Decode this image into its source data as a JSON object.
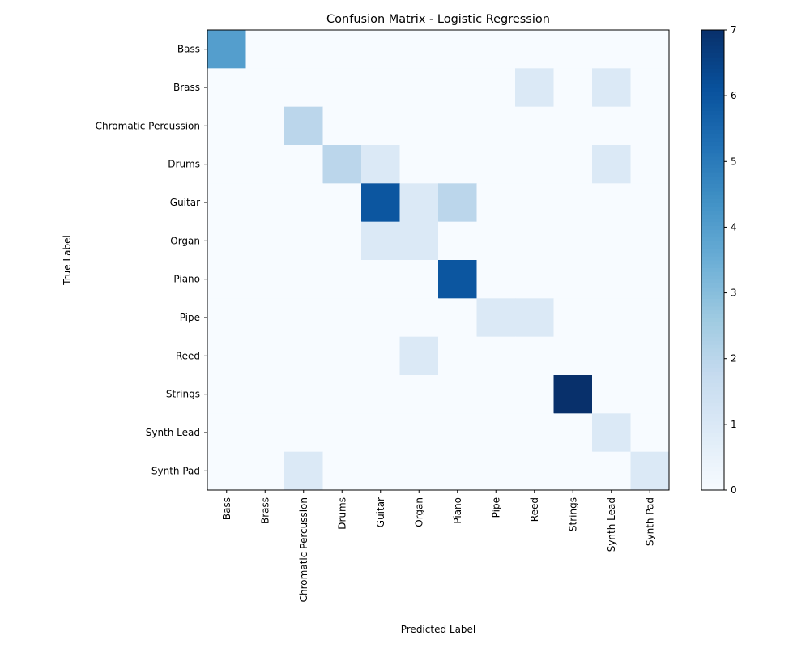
{
  "chart_data": {
    "type": "heatmap",
    "title": "Confusion Matrix - Logistic Regression",
    "xlabel": "Predicted Label",
    "ylabel": "True Label",
    "x_categories": [
      "Bass",
      "Brass",
      "Chromatic Percussion",
      "Drums",
      "Guitar",
      "Organ",
      "Piano",
      "Pipe",
      "Reed",
      "Strings",
      "Synth Lead",
      "Synth Pad"
    ],
    "y_categories": [
      "Bass",
      "Brass",
      "Chromatic Percussion",
      "Drums",
      "Guitar",
      "Organ",
      "Piano",
      "Pipe",
      "Reed",
      "Strings",
      "Synth Lead",
      "Synth Pad"
    ],
    "values": [
      [
        4,
        0,
        0,
        0,
        0,
        0,
        0,
        0,
        0,
        0,
        0,
        0
      ],
      [
        0,
        0,
        0,
        0,
        0,
        0,
        0,
        0,
        1,
        0,
        1,
        0
      ],
      [
        0,
        0,
        2,
        0,
        0,
        0,
        0,
        0,
        0,
        0,
        0,
        0
      ],
      [
        0,
        0,
        0,
        2,
        1,
        0,
        0,
        0,
        0,
        0,
        1,
        0
      ],
      [
        0,
        0,
        0,
        0,
        6,
        1,
        2,
        0,
        0,
        0,
        0,
        0
      ],
      [
        0,
        0,
        0,
        0,
        1,
        1,
        0,
        0,
        0,
        0,
        0,
        0
      ],
      [
        0,
        0,
        0,
        0,
        0,
        0,
        6,
        0,
        0,
        0,
        0,
        0
      ],
      [
        0,
        0,
        0,
        0,
        0,
        0,
        0,
        1,
        1,
        0,
        0,
        0
      ],
      [
        0,
        0,
        0,
        0,
        0,
        1,
        0,
        0,
        0,
        0,
        0,
        0
      ],
      [
        0,
        0,
        0,
        0,
        0,
        0,
        0,
        0,
        0,
        7,
        0,
        0
      ],
      [
        0,
        0,
        0,
        0,
        0,
        0,
        0,
        0,
        0,
        0,
        1,
        0
      ],
      [
        0,
        0,
        1,
        0,
        0,
        0,
        0,
        0,
        0,
        0,
        0,
        1
      ]
    ],
    "colorbar": {
      "min": 0,
      "max": 7,
      "ticks": [
        "0",
        "1",
        "2",
        "3",
        "4",
        "5",
        "6",
        "7"
      ],
      "colormap": "Blues"
    }
  }
}
